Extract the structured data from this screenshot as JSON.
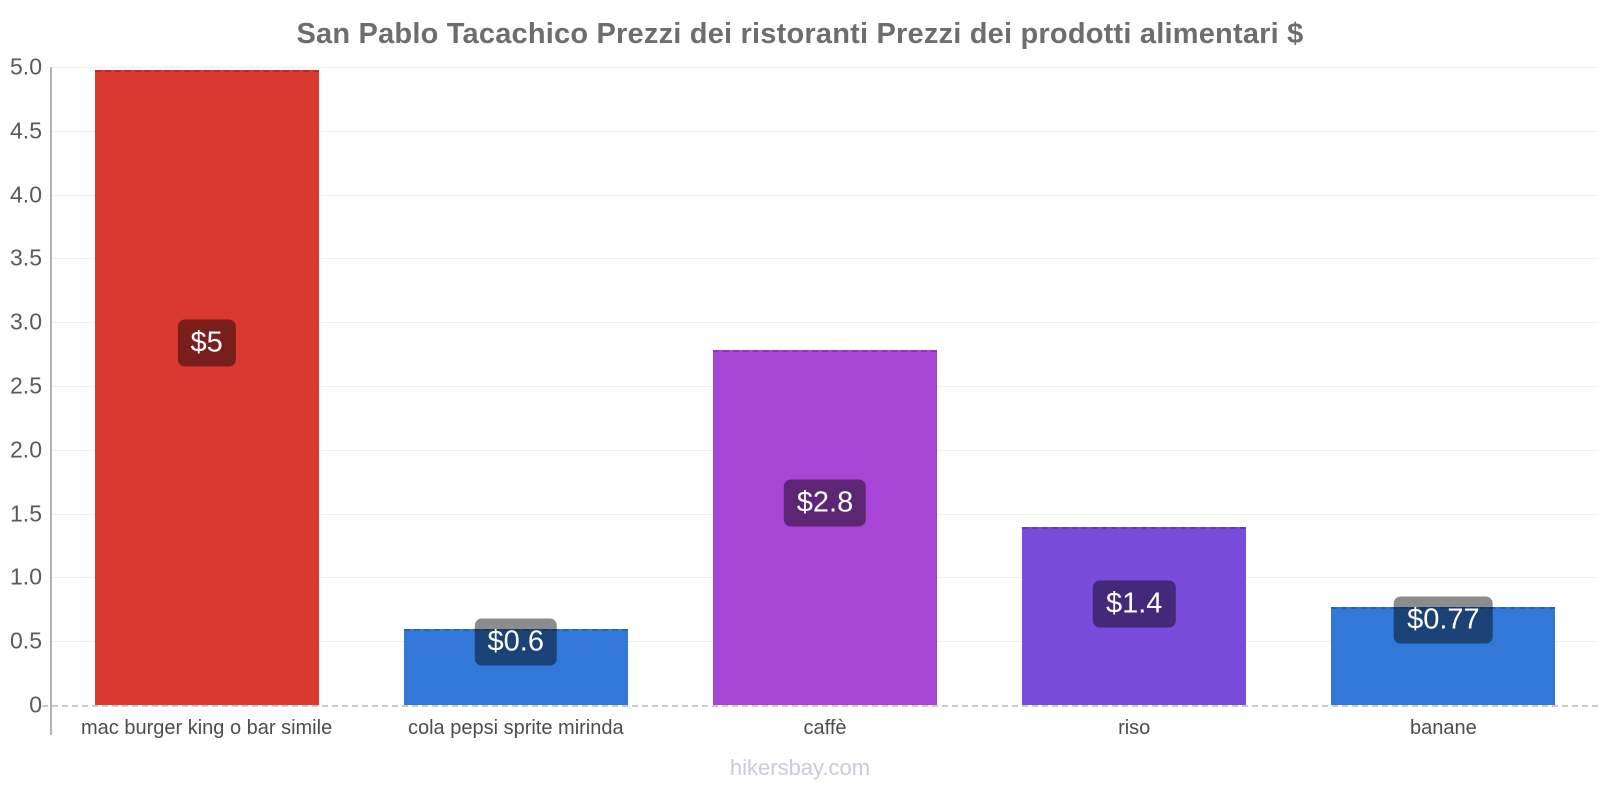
{
  "chart_data": {
    "type": "bar",
    "title": "San Pablo Tacachico Prezzi dei ristoranti Prezzi dei prodotti alimentari $",
    "categories": [
      "mac burger king o bar simile",
      "cola pepsi sprite mirinda",
      "caffè",
      "riso",
      "banane"
    ],
    "values": [
      5,
      0.6,
      2.8,
      1.4,
      0.77
    ],
    "value_labels": [
      "$5",
      "$0.6",
      "$2.8",
      "$1.4",
      "$0.77"
    ],
    "bar_colors": [
      "#dc3832",
      "#3178d8",
      "#a845d6",
      "#7b4bdb",
      "#3178d8"
    ],
    "currency": "$",
    "ylim": [
      0,
      5
    ],
    "ytick_step": 0.5,
    "ytick_labels": [
      "5.0",
      "4.5",
      "4.0",
      "3.5",
      "3.0",
      "2.5",
      "2.0",
      "1.5",
      "1.0",
      "0.5",
      "0"
    ],
    "grid": true,
    "legend": false,
    "value_chip_overlay_color": "rgba(0,0,0,0.45)"
  },
  "footer": {
    "text": "hikersbay.com"
  }
}
